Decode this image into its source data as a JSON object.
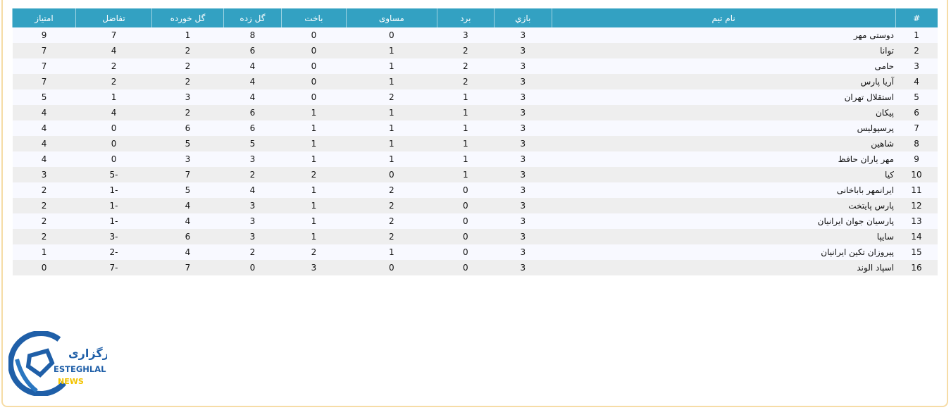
{
  "table": {
    "headers": [
      "#",
      "نام تیم",
      "بازي",
      "برد",
      "مساوی",
      "باخت",
      "گل زده",
      "گل خورده",
      "تفاضل",
      "امتیاز"
    ],
    "rows": [
      [
        "1",
        "دوستی مهر",
        "3",
        "3",
        "0",
        "0",
        "8",
        "1",
        "7",
        "9"
      ],
      [
        "2",
        "توانا",
        "3",
        "2",
        "1",
        "0",
        "6",
        "2",
        "4",
        "7"
      ],
      [
        "3",
        "حامی",
        "3",
        "2",
        "1",
        "0",
        "4",
        "2",
        "2",
        "7"
      ],
      [
        "4",
        "آریا پارس",
        "3",
        "2",
        "1",
        "0",
        "4",
        "2",
        "2",
        "7"
      ],
      [
        "5",
        "استقلال تهران",
        "3",
        "1",
        "2",
        "0",
        "4",
        "3",
        "1",
        "5"
      ],
      [
        "6",
        "پیکان",
        "3",
        "1",
        "1",
        "1",
        "6",
        "2",
        "4",
        "4"
      ],
      [
        "7",
        "پرسپولیس",
        "3",
        "1",
        "1",
        "1",
        "6",
        "6",
        "0",
        "4"
      ],
      [
        "8",
        "شاهین",
        "3",
        "1",
        "1",
        "1",
        "5",
        "5",
        "0",
        "4"
      ],
      [
        "9",
        "مهر یاران حافظ",
        "3",
        "1",
        "1",
        "1",
        "3",
        "3",
        "0",
        "4"
      ],
      [
        "10",
        "کیا",
        "3",
        "1",
        "0",
        "2",
        "2",
        "7",
        "-5",
        "3"
      ],
      [
        "11",
        "ایرانمهر باباخانی",
        "3",
        "0",
        "2",
        "1",
        "4",
        "5",
        "-1",
        "2"
      ],
      [
        "12",
        "پارس پایتخت",
        "3",
        "0",
        "2",
        "1",
        "3",
        "4",
        "-1",
        "2"
      ],
      [
        "13",
        "پارسیان جوان ایرانیان",
        "3",
        "0",
        "2",
        "1",
        "3",
        "4",
        "-1",
        "2"
      ],
      [
        "14",
        "سایپا",
        "3",
        "0",
        "2",
        "1",
        "3",
        "6",
        "-3",
        "2"
      ],
      [
        "15",
        "پیروزان تکین ایرانیان",
        "3",
        "0",
        "1",
        "2",
        "2",
        "4",
        "-2",
        "1"
      ],
      [
        "16",
        "اسپاد الوند",
        "3",
        "0",
        "0",
        "3",
        "0",
        "7",
        "-7",
        "0"
      ]
    ]
  },
  "logo": {
    "persian": "خبرگزاری",
    "line1": "ESTEGHLAL",
    "line2": "NEWS"
  },
  "colors": {
    "header": "#33a1c2",
    "row_odd": "#f8f9ff",
    "row_even": "#eeeeee",
    "frame": "#f6dca6",
    "logo_blue": "#1f5fa8",
    "logo_yellow": "#f2c300"
  }
}
